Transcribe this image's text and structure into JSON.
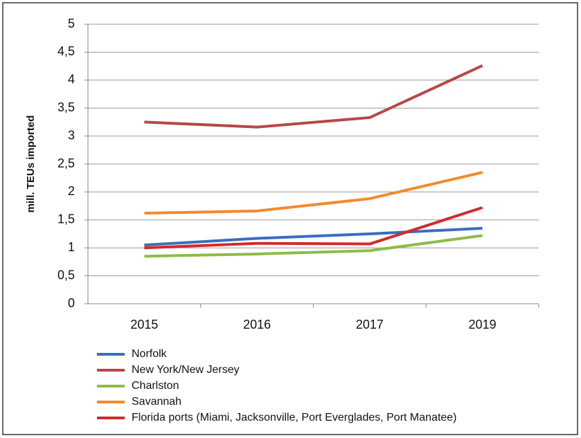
{
  "chart_data": {
    "type": "line",
    "y_label": "mill. TEUs imported",
    "categories": [
      "2015",
      "2016",
      "2017",
      "2019"
    ],
    "series": [
      {
        "name": "Norfolk",
        "color": "#3a6fba",
        "values": [
          1.05,
          1.17,
          1.25,
          1.35
        ]
      },
      {
        "name": "New York/New Jersey",
        "color": "#b64846",
        "values": [
          3.25,
          3.16,
          3.33,
          4.26
        ]
      },
      {
        "name": "Charlston",
        "color": "#8cbc4a",
        "values": [
          0.85,
          0.89,
          0.95,
          1.22
        ]
      },
      {
        "name": "Savannah",
        "color": "#f38a2e",
        "values": [
          1.62,
          1.66,
          1.88,
          2.35
        ]
      },
      {
        "name": "Florida ports (Miami, Jacksonville, Port Everglades, Port Manatee)",
        "color": "#d42a2a",
        "values": [
          1.0,
          1.08,
          1.07,
          1.72
        ]
      }
    ],
    "ylim": [
      0,
      5
    ],
    "yticks": [
      0,
      {
        "value": 0.5,
        "label": "0,5"
      },
      1,
      {
        "value": 1.5,
        "label": "1,5"
      },
      2,
      {
        "value": 2.5,
        "label": "2,5"
      },
      3,
      {
        "value": 3.5,
        "label": "3,5"
      },
      4,
      {
        "value": 4.5,
        "label": "4,5"
      },
      5
    ],
    "grid": true
  }
}
